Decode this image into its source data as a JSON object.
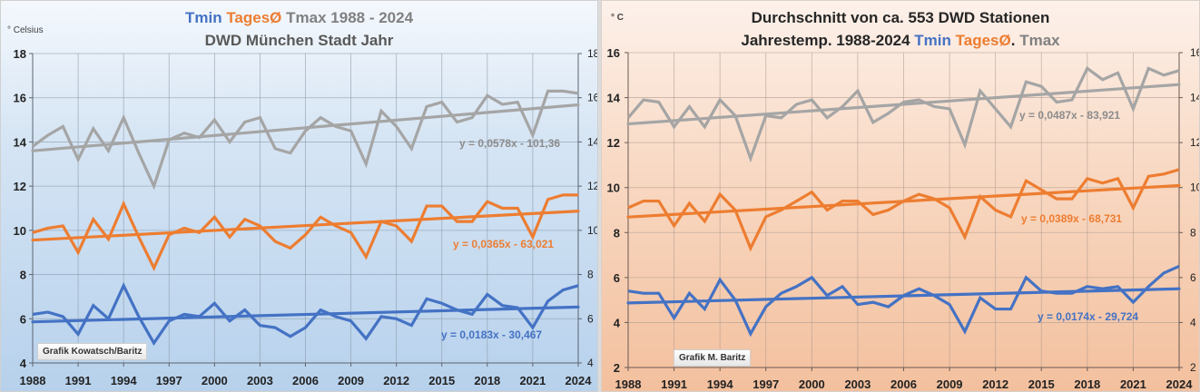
{
  "chart_data": [
    {
      "type": "line",
      "title_parts": [
        {
          "text": "Tmin ",
          "role": "tmin"
        },
        {
          "text": "TagesØ ",
          "role": "tavg"
        },
        {
          "text": "Tmax ",
          "role": "tmax"
        },
        {
          "text": "1988 - 2024",
          "role": "plain"
        }
      ],
      "subtitle": "DWD München Stadt Jahr",
      "ylabel": "° Celsius",
      "xlabel": "",
      "ylim": [
        4,
        18
      ],
      "yticks": [
        4,
        6,
        8,
        10,
        12,
        14,
        16,
        18
      ],
      "xlim": [
        1988,
        2024
      ],
      "xticks": [
        1988,
        1991,
        1994,
        1997,
        2000,
        2003,
        2006,
        2009,
        2012,
        2015,
        2018,
        2021,
        2024
      ],
      "grid": true,
      "credit": "Grafik Kowatsch/Baritz",
      "x": [
        1988,
        1989,
        1990,
        1991,
        1992,
        1993,
        1994,
        1995,
        1996,
        1997,
        1998,
        1999,
        2000,
        2001,
        2002,
        2003,
        2004,
        2005,
        2006,
        2007,
        2008,
        2009,
        2010,
        2011,
        2012,
        2013,
        2014,
        2015,
        2016,
        2017,
        2018,
        2019,
        2020,
        2021,
        2022,
        2023,
        2024
      ],
      "series": [
        {
          "name": "Tmax",
          "color": "#a5a5a5",
          "values": [
            13.8,
            14.3,
            14.7,
            13.2,
            14.6,
            13.6,
            15.1,
            13.5,
            12.0,
            14.1,
            14.4,
            14.2,
            15.0,
            14.0,
            14.9,
            15.1,
            13.7,
            13.5,
            14.5,
            15.1,
            14.7,
            14.5,
            13.0,
            15.4,
            14.7,
            13.7,
            15.6,
            15.8,
            14.9,
            15.1,
            16.1,
            15.7,
            15.8,
            14.3,
            16.3,
            16.3,
            16.2
          ],
          "trend": {
            "start": 13.6,
            "end": 15.68,
            "equation": "y = 0,0578x - 101,36"
          }
        },
        {
          "name": "TagesØ",
          "color": "#ed7d31",
          "values": [
            9.9,
            10.1,
            10.2,
            9.0,
            10.5,
            9.6,
            11.2,
            9.7,
            8.3,
            9.8,
            10.1,
            9.9,
            10.6,
            9.7,
            10.5,
            10.2,
            9.5,
            9.2,
            9.8,
            10.6,
            10.2,
            9.9,
            8.8,
            10.4,
            10.2,
            9.5,
            11.1,
            11.1,
            10.4,
            10.4,
            11.3,
            11.0,
            11.0,
            9.7,
            11.4,
            11.6,
            11.6
          ],
          "trend": {
            "start": 9.56,
            "end": 10.87,
            "equation": "y = 0,0365x - 63,021"
          }
        },
        {
          "name": "Tmin",
          "color": "#4472c4",
          "values": [
            6.2,
            6.3,
            6.1,
            5.3,
            6.6,
            6.0,
            7.5,
            6.1,
            4.9,
            5.9,
            6.2,
            6.1,
            6.7,
            5.9,
            6.4,
            5.7,
            5.6,
            5.2,
            5.6,
            6.4,
            6.1,
            5.9,
            5.1,
            6.1,
            6.0,
            5.7,
            6.9,
            6.7,
            6.4,
            6.2,
            7.1,
            6.6,
            6.5,
            5.6,
            6.8,
            7.3,
            7.5
          ],
          "trend": {
            "start": 5.86,
            "end": 6.53,
            "equation": "y = 0,0183x - 30,467"
          }
        }
      ]
    },
    {
      "type": "line",
      "title": "Durchschnitt von ca. 553 DWD Stationen",
      "subtitle_parts": [
        {
          "text": "Jahrestemp. 1988-2024  ",
          "role": "plain"
        },
        {
          "text": "Tmin ",
          "role": "tmin"
        },
        {
          "text": "TagesØ",
          "role": "tavg"
        },
        {
          "text": ". ",
          "role": "plain"
        },
        {
          "text": "Tmax",
          "role": "tmax"
        }
      ],
      "ylabel": "° C",
      "xlabel": "",
      "ylim": [
        2,
        16
      ],
      "yticks": [
        2,
        4,
        6,
        8,
        10,
        12,
        14,
        16
      ],
      "xlim": [
        1988,
        2024
      ],
      "xticks": [
        1988,
        1991,
        1994,
        1997,
        2000,
        2003,
        2006,
        2009,
        2012,
        2015,
        2018,
        2021,
        2024
      ],
      "grid": true,
      "credit": "Grafik M. Baritz",
      "x": [
        1988,
        1989,
        1990,
        1991,
        1992,
        1993,
        1994,
        1995,
        1996,
        1997,
        1998,
        1999,
        2000,
        2001,
        2002,
        2003,
        2004,
        2005,
        2006,
        2007,
        2008,
        2009,
        2010,
        2011,
        2012,
        2013,
        2014,
        2015,
        2016,
        2017,
        2018,
        2019,
        2020,
        2021,
        2022,
        2023,
        2024
      ],
      "series": [
        {
          "name": "Tmax",
          "color": "#a5a5a5",
          "values": [
            13.1,
            13.9,
            13.8,
            12.7,
            13.6,
            12.7,
            13.9,
            13.2,
            11.3,
            13.2,
            13.1,
            13.7,
            13.9,
            13.1,
            13.6,
            14.3,
            12.9,
            13.3,
            13.8,
            13.9,
            13.6,
            13.5,
            11.9,
            14.3,
            13.5,
            12.7,
            14.7,
            14.5,
            13.8,
            13.9,
            15.3,
            14.8,
            15.1,
            13.5,
            15.3,
            15.0,
            15.2
          ],
          "trend": {
            "start": 12.83,
            "end": 14.58,
            "equation": "y = 0,0487x - 83,921"
          }
        },
        {
          "name": "TagesØ",
          "color": "#ed7d31",
          "values": [
            9.1,
            9.4,
            9.4,
            8.3,
            9.3,
            8.5,
            9.7,
            9.0,
            7.3,
            8.7,
            9.0,
            9.4,
            9.8,
            9.0,
            9.4,
            9.4,
            8.8,
            9.0,
            9.4,
            9.7,
            9.5,
            9.1,
            7.8,
            9.6,
            9.0,
            8.7,
            10.3,
            9.9,
            9.5,
            9.5,
            10.4,
            10.2,
            10.4,
            9.1,
            10.5,
            10.6,
            10.8
          ],
          "trend": {
            "start": 8.69,
            "end": 10.09,
            "equation": "y = 0,0389x - 68,731"
          }
        },
        {
          "name": "Tmin",
          "color": "#4472c4",
          "values": [
            5.4,
            5.3,
            5.3,
            4.2,
            5.3,
            4.6,
            5.9,
            5.0,
            3.5,
            4.7,
            5.3,
            5.6,
            6.0,
            5.2,
            5.6,
            4.8,
            4.9,
            4.7,
            5.2,
            5.5,
            5.2,
            4.8,
            3.6,
            5.1,
            4.6,
            4.6,
            6.0,
            5.4,
            5.3,
            5.3,
            5.6,
            5.5,
            5.6,
            4.9,
            5.6,
            6.2,
            6.5
          ],
          "trend": {
            "start": 4.87,
            "end": 5.5,
            "equation": "y = 0,0174x - 29,724"
          }
        }
      ]
    }
  ]
}
